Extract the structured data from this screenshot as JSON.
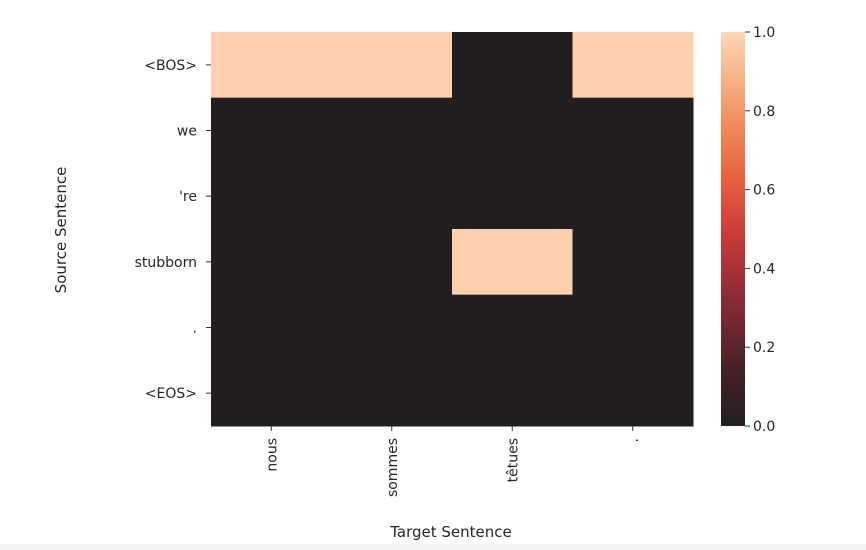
{
  "chart_data": {
    "type": "heatmap",
    "xlabel": "Target Sentence",
    "ylabel": "Source Sentence",
    "x_categories": [
      "nous",
      "sommes",
      "têtues",
      "."
    ],
    "y_categories": [
      "<BOS>",
      "we",
      "'re",
      "stubborn",
      ".",
      "<EOS>"
    ],
    "values": [
      [
        1,
        1,
        0,
        1
      ],
      [
        0,
        0,
        0,
        0
      ],
      [
        0,
        0,
        0,
        0
      ],
      [
        0,
        0,
        1,
        0
      ],
      [
        0,
        0,
        0,
        0
      ],
      [
        0,
        0,
        0,
        0
      ]
    ],
    "colorbar": {
      "min": 0.0,
      "max": 1.0,
      "ticks": [
        "0.0",
        "0.2",
        "0.4",
        "0.6",
        "0.8",
        "1.0"
      ]
    },
    "colors": {
      "low": "#231f20",
      "high": "#fcd0ae"
    }
  }
}
